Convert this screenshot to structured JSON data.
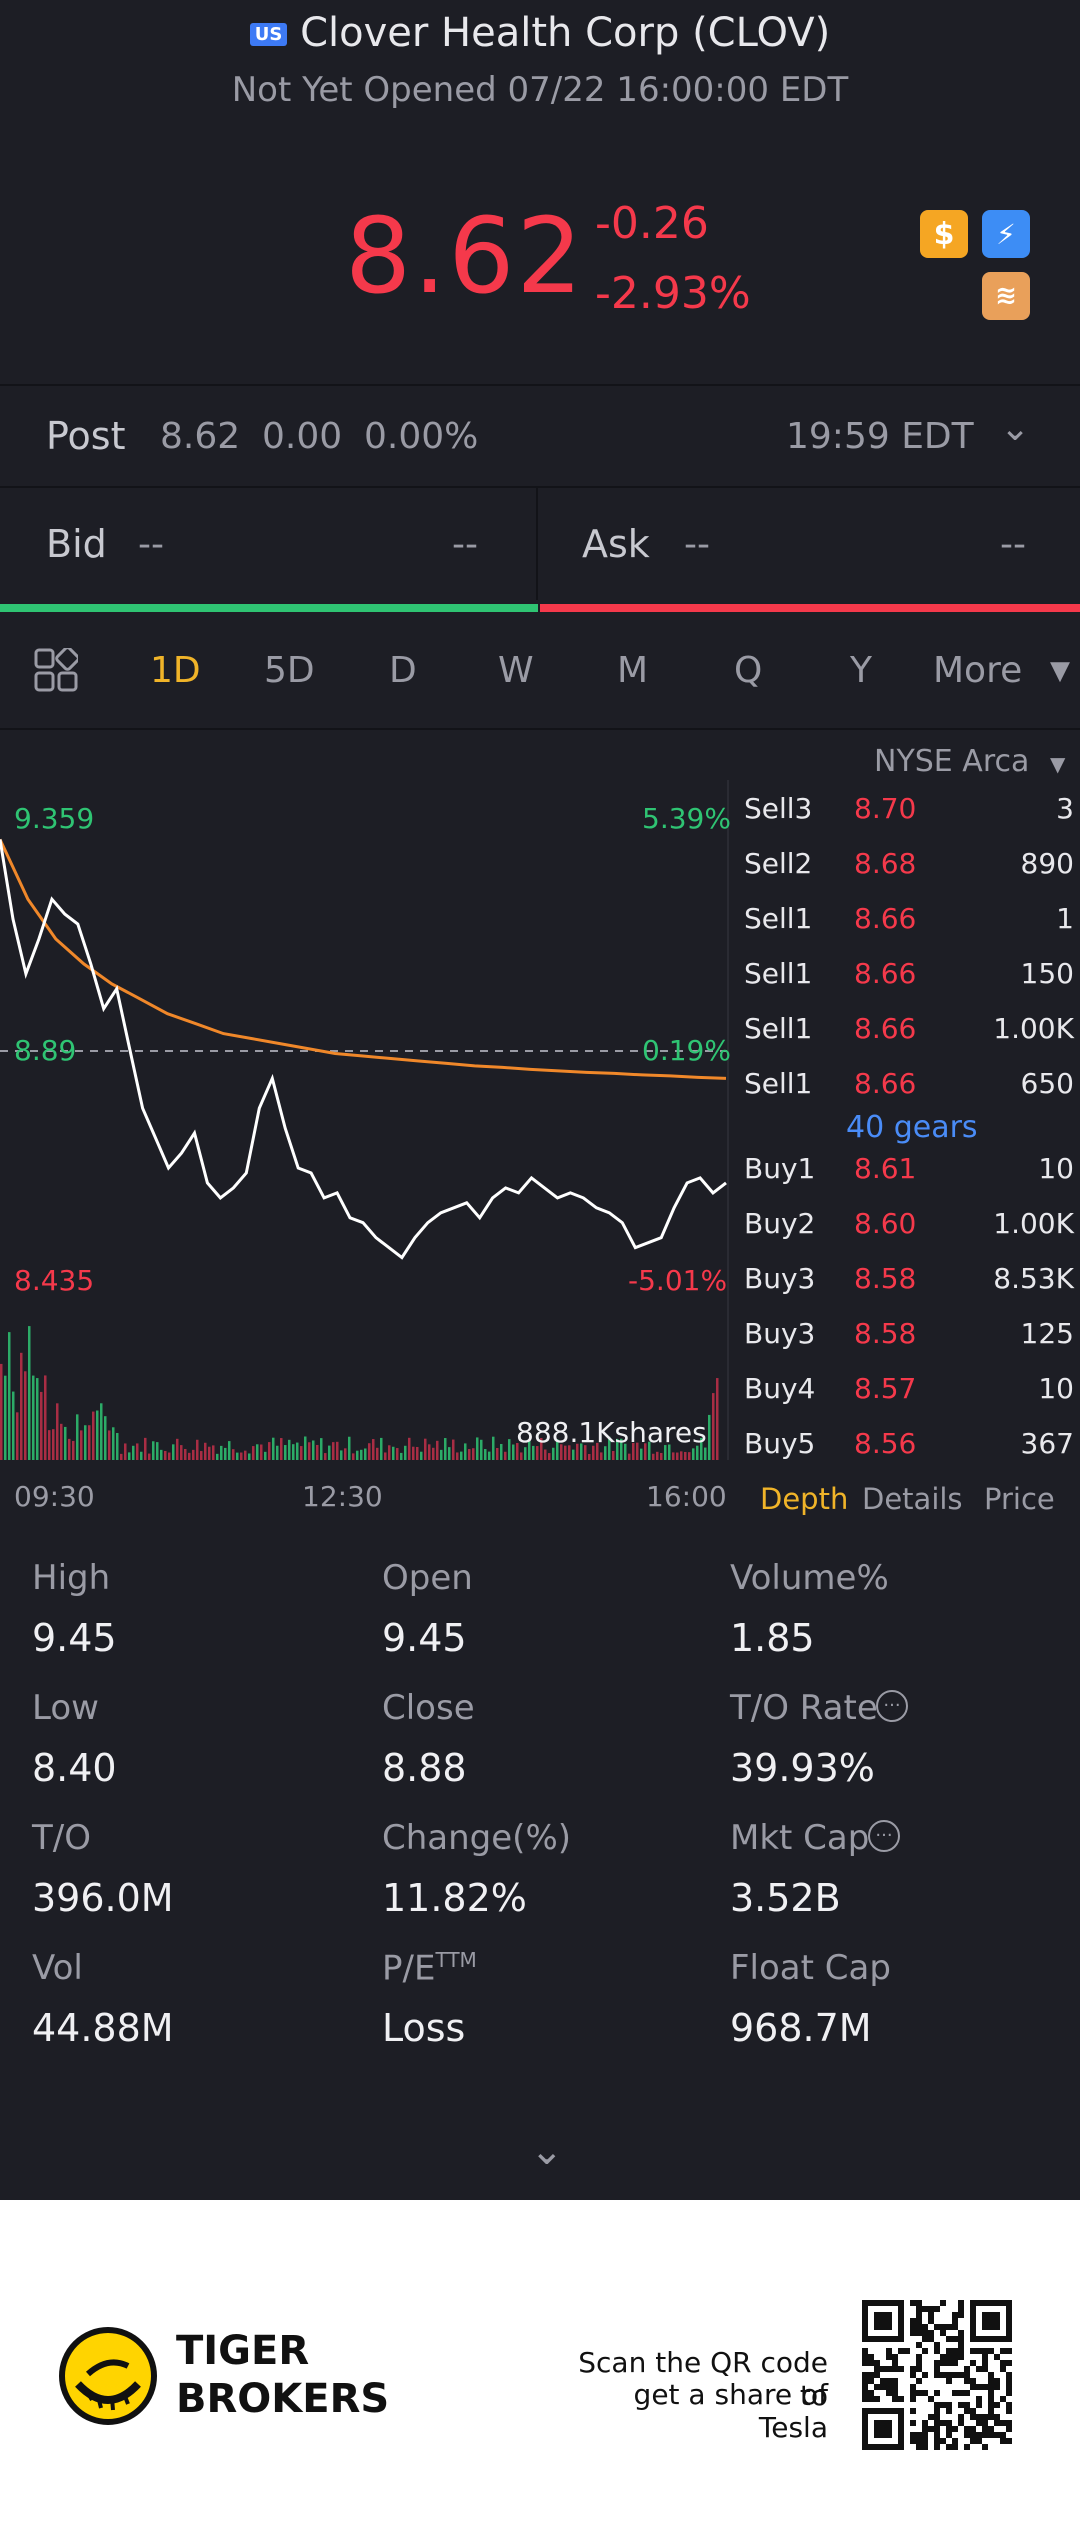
{
  "header": {
    "market_badge": "US",
    "title": "Clover Health Corp (CLOV)",
    "status": "Not Yet Opened 07/22 16:00:00 EDT"
  },
  "quote": {
    "price": "8.62",
    "change": "-0.26",
    "change_pct": "-2.93%",
    "icons": [
      "dollar-icon",
      "flash-icon",
      "layers-icon"
    ]
  },
  "post": {
    "label": "Post",
    "price": "8.62",
    "change": "0.00",
    "change_pct": "0.00%",
    "time": "19:59 EDT"
  },
  "bid_ask": {
    "bid_label": "Bid",
    "bid_price": "--",
    "bid_size": "--",
    "ask_label": "Ask",
    "ask_price": "--",
    "ask_size": "--"
  },
  "tabs": {
    "items": [
      "1D",
      "5D",
      "D",
      "W",
      "M",
      "Q",
      "Y"
    ],
    "active": "1D",
    "more": "More"
  },
  "chart": {
    "exchange": "NYSE Arca",
    "high_price": "9.359",
    "high_pct": "5.39%",
    "ref_price": "8.89",
    "ref_pct": "0.19%",
    "low_price": "8.435",
    "low_pct": "-5.01%",
    "volume_label": "888.1Kshares",
    "time_labels": [
      "09:30",
      "12:30",
      "16:00"
    ]
  },
  "chart_data": {
    "type": "line",
    "x_ticks": [
      "09:30",
      "12:30",
      "16:00"
    ],
    "ylim": [
      8.435,
      9.359
    ],
    "reference": 8.89,
    "series": [],
    "price_points": [
      9.32,
      9.16,
      9.05,
      9.12,
      9.2,
      9.17,
      9.15,
      9.07,
      8.98,
      9.02,
      8.9,
      8.78,
      8.72,
      8.66,
      8.69,
      8.73,
      8.63,
      8.6,
      8.62,
      8.65,
      8.78,
      8.84,
      8.74,
      8.66,
      8.65,
      8.6,
      8.61,
      8.56,
      8.55,
      8.52,
      8.5,
      8.48,
      8.52,
      8.55,
      8.57,
      8.58,
      8.59,
      8.56,
      8.6,
      8.62,
      8.61,
      8.64,
      8.62,
      8.6,
      8.61,
      8.6,
      8.58,
      8.57,
      8.55,
      8.5,
      8.51,
      8.52,
      8.58,
      8.63,
      8.64,
      8.61,
      8.63
    ],
    "avg_points": [
      9.32,
      9.2,
      9.12,
      9.07,
      9.03,
      9.0,
      8.97,
      8.95,
      8.93,
      8.92,
      8.91,
      8.9,
      8.89,
      8.885,
      8.88,
      8.875,
      8.87,
      8.865,
      8.862,
      8.858,
      8.855,
      8.852,
      8.85,
      8.847,
      8.845,
      8.842,
      8.84
    ],
    "volume_total": "888.1Kshares"
  },
  "order_book": {
    "sells": [
      {
        "label": "Sell3",
        "price": "8.70",
        "size": "3"
      },
      {
        "label": "Sell2",
        "price": "8.68",
        "size": "890"
      },
      {
        "label": "Sell1",
        "price": "8.66",
        "size": "1"
      },
      {
        "label": "Sell1",
        "price": "8.66",
        "size": "150"
      },
      {
        "label": "Sell1",
        "price": "8.66",
        "size": "1.00K"
      },
      {
        "label": "Sell1",
        "price": "8.66",
        "size": "650"
      }
    ],
    "gears": "40 gears",
    "buys": [
      {
        "label": "Buy1",
        "price": "8.61",
        "size": "10"
      },
      {
        "label": "Buy2",
        "price": "8.60",
        "size": "1.00K"
      },
      {
        "label": "Buy3",
        "price": "8.58",
        "size": "8.53K"
      },
      {
        "label": "Buy3",
        "price": "8.58",
        "size": "125"
      },
      {
        "label": "Buy4",
        "price": "8.57",
        "size": "10"
      },
      {
        "label": "Buy5",
        "price": "8.56",
        "size": "367"
      }
    ],
    "tabs": [
      "Depth",
      "Details",
      "Price"
    ]
  },
  "stats": {
    "high_label": "High",
    "high": "9.45",
    "open_label": "Open",
    "open": "9.45",
    "volpct_label": "Volume%",
    "volpct": "1.85",
    "low_label": "Low",
    "low": "8.40",
    "close_label": "Close",
    "close": "8.88",
    "torate_label": "T/O Rate",
    "torate": "39.93%",
    "to_label": "T/O",
    "to": "396.0M",
    "changepct_label": "Change(%)",
    "changepct": "11.82%",
    "mktcap_label": "Mkt Cap",
    "mktcap": "3.52B",
    "vol_label": "Vol",
    "vol": "44.88M",
    "pe_label": "P/E",
    "pe_sup": "TTM",
    "pe": "Loss",
    "floatcap_label": "Float Cap",
    "floatcap": "968.7M"
  },
  "footer": {
    "brand_line1": "TIGER",
    "brand_line2": "BROKERS",
    "cta_line1": "Scan the QR code to",
    "cta_line2": "get a share of Tesla"
  },
  "colors": {
    "background": "#1d1e25",
    "down": "#f5394b",
    "up": "#2fc473",
    "accent": "#f0b429",
    "avg_line": "#f0882a",
    "link": "#4a8cf7"
  }
}
